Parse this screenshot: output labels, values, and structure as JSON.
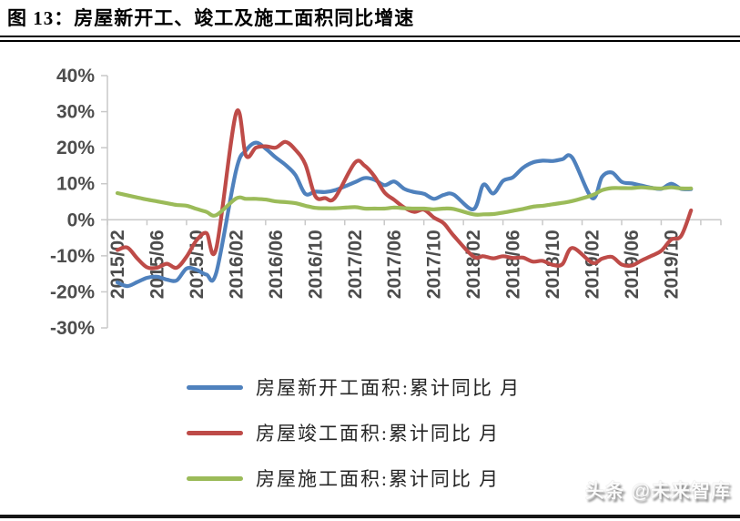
{
  "title": "图 13：房屋新开工、竣工及施工面积同比增速",
  "watermark": "头条 @未来智库",
  "chart_data": {
    "type": "line",
    "title": "图 13：房屋新开工、竣工及施工面积同比增速",
    "xlabel": "",
    "ylabel": "",
    "ylim": [
      -30,
      40
    ],
    "y_ticks": [
      40,
      30,
      20,
      10,
      0,
      -10,
      -20,
      -30
    ],
    "y_tick_suffix": "%",
    "grid": "zero-axis-line-only",
    "legend_position": "bottom",
    "axis_color": "#c9c9c9",
    "label_color": "#4d4d4d",
    "x_tick_labels": [
      "2015/02",
      "2015/06",
      "2015/10",
      "2016/02",
      "2016/06",
      "2016/10",
      "2017/02",
      "2017/06",
      "2017/10",
      "2018/02",
      "2018/06",
      "2018/10",
      "2019/02",
      "2019/06",
      "2019/10"
    ],
    "months": [
      "2015/02",
      "2015/03",
      "2015/04",
      "2015/05",
      "2015/06",
      "2015/07",
      "2015/08",
      "2015/09",
      "2015/10",
      "2015/11",
      "2015/12",
      "2016/02",
      "2016/03",
      "2016/04",
      "2016/05",
      "2016/06",
      "2016/07",
      "2016/08",
      "2016/09",
      "2016/10",
      "2016/11",
      "2016/12",
      "2017/02",
      "2017/03",
      "2017/04",
      "2017/05",
      "2017/06",
      "2017/07",
      "2017/08",
      "2017/09",
      "2017/10",
      "2017/11",
      "2017/12",
      "2018/02",
      "2018/03",
      "2018/04",
      "2018/05",
      "2018/06",
      "2018/07",
      "2018/08",
      "2018/09",
      "2018/10",
      "2018/11",
      "2018/12",
      "2019/02",
      "2019/03",
      "2019/04",
      "2019/05",
      "2019/06",
      "2019/07",
      "2019/08",
      "2019/09",
      "2019/10",
      "2019/11",
      "2019/12"
    ],
    "series": [
      {
        "name": "房屋新开工面积:累计同比 月",
        "color": "#4F81BD",
        "values": [
          -17.4,
          -18.4,
          -17.3,
          -16.1,
          -15.8,
          -16.6,
          -16.8,
          -13.5,
          -13.9,
          -15.2,
          -14.6,
          13.7,
          19.2,
          21.4,
          19.7,
          17.3,
          15.2,
          12.4,
          7.2,
          7.8,
          7.7,
          8.2,
          10.4,
          11.6,
          11.1,
          9.6,
          10.6,
          8.6,
          7.7,
          7.2,
          5.8,
          6.9,
          7.0,
          2.9,
          9.7,
          7.3,
          10.8,
          11.8,
          14.4,
          15.9,
          16.4,
          16.3,
          16.8,
          17.2,
          6.0,
          11.9,
          13.1,
          10.5,
          10.1,
          9.5,
          8.9,
          8.6,
          10.0,
          8.6,
          8.5
        ]
      },
      {
        "name": "房屋竣工面积:累计同比 月",
        "color": "#BE4B48",
        "values": [
          -8.4,
          -7.7,
          -10.7,
          -13.2,
          -13.3,
          -12.2,
          -13.3,
          -10.2,
          -5.7,
          -3.7,
          -7.8,
          29.6,
          17.8,
          20.0,
          20.4,
          20.0,
          21.6,
          19.4,
          15.4,
          6.6,
          6.0,
          6.1,
          15.8,
          15.0,
          12.0,
          7.6,
          5.5,
          3.4,
          2.2,
          2.8,
          0.6,
          -1.0,
          -4.4,
          -10.2,
          -10.1,
          -10.7,
          -10.1,
          -10.6,
          -10.5,
          -11.6,
          -11.4,
          -12.5,
          -12.3,
          -7.8,
          -11.9,
          -10.8,
          -10.3,
          -12.4,
          -12.7,
          -11.3,
          -10.0,
          -8.6,
          -5.5,
          -4.5,
          2.6
        ]
      },
      {
        "name": "房屋施工面积:累计同比 月",
        "color": "#9BBB59",
        "values": [
          7.4,
          6.8,
          6.2,
          5.6,
          5.1,
          4.6,
          4.1,
          3.9,
          3.0,
          2.2,
          1.3,
          5.9,
          5.8,
          5.8,
          5.6,
          5.1,
          4.9,
          4.6,
          3.9,
          3.3,
          3.2,
          3.2,
          3.5,
          3.1,
          3.1,
          3.1,
          3.4,
          3.2,
          3.1,
          3.1,
          2.9,
          3.1,
          3.0,
          1.5,
          1.5,
          1.6,
          2.0,
          2.5,
          3.0,
          3.6,
          3.9,
          4.3,
          4.7,
          5.2,
          6.8,
          8.2,
          8.8,
          8.8,
          8.8,
          9.0,
          8.8,
          8.7,
          9.0,
          8.7,
          8.7
        ]
      }
    ]
  }
}
